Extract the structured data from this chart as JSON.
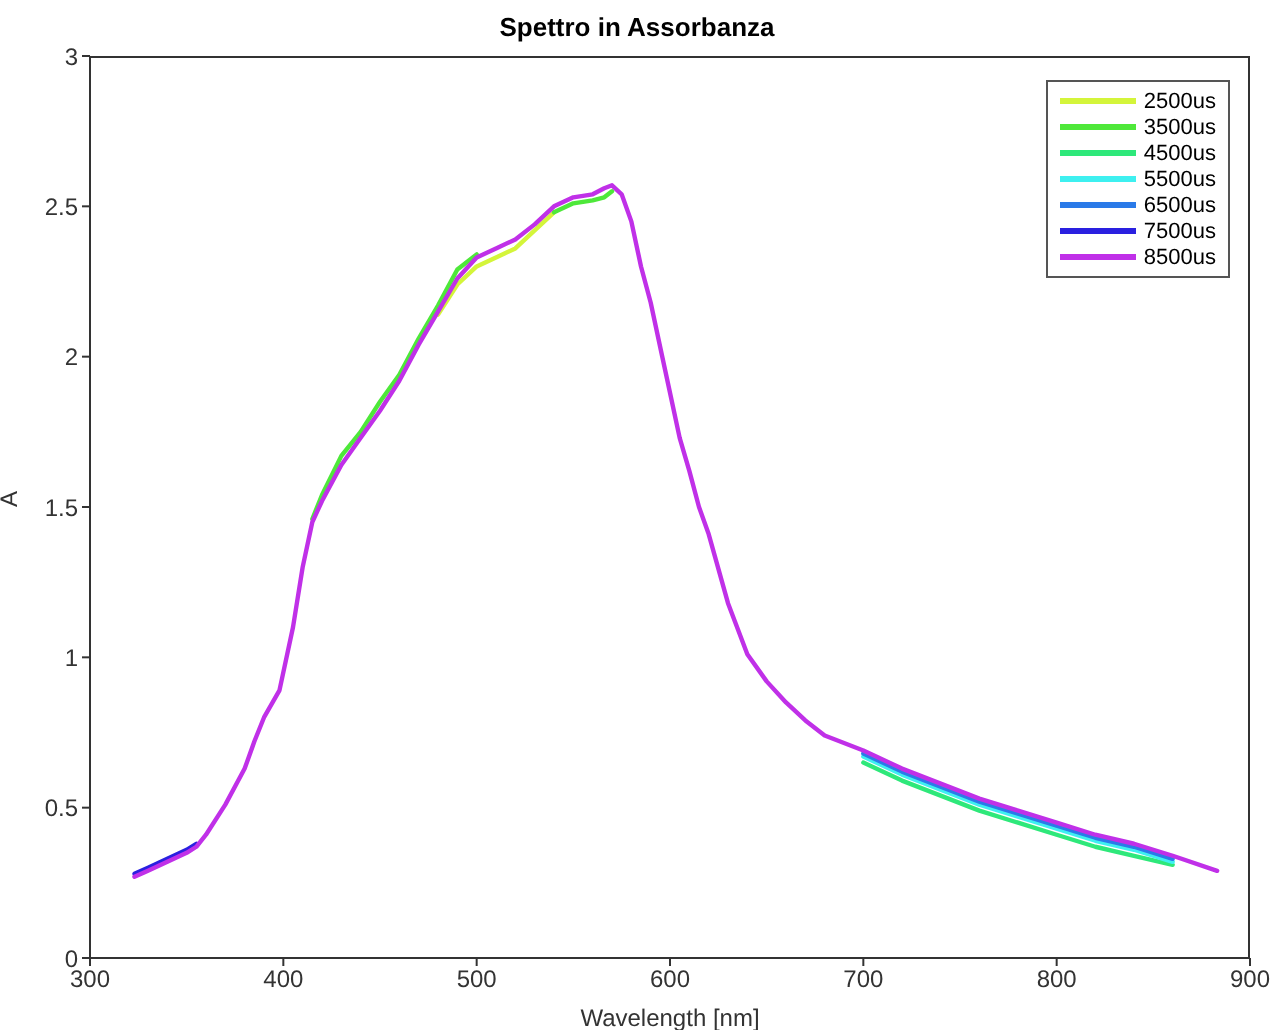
{
  "chart_data": {
    "type": "line",
    "title": "Spettro in Assorbanza",
    "xlabel": "Wavelength [nm]",
    "ylabel": "A",
    "x": [
      323,
      330,
      340,
      350,
      355,
      360,
      370,
      380,
      385,
      390,
      398,
      405,
      410,
      415,
      420,
      430,
      440,
      450,
      460,
      470,
      480,
      490,
      500,
      510,
      520,
      530,
      540,
      550,
      560,
      566,
      570,
      575,
      580,
      585,
      590,
      596,
      600,
      605,
      610,
      615,
      620,
      630,
      640,
      650,
      660,
      670,
      680,
      700,
      720,
      740,
      760,
      780,
      800,
      820,
      840,
      860,
      883
    ],
    "xlim": [
      300,
      900
    ],
    "xticks": [
      300,
      400,
      500,
      600,
      700,
      800,
      900
    ],
    "ylim": [
      0,
      3
    ],
    "yticks": [
      0,
      0.5,
      1,
      1.5,
      2,
      2.5,
      3
    ],
    "grid": false,
    "legend": "top right",
    "line_style": "solid",
    "marker": "none",
    "series": [
      {
        "name": "2500us",
        "color": "#d4f53a",
        "values": [
          null,
          null,
          null,
          null,
          null,
          null,
          null,
          null,
          null,
          null,
          null,
          null,
          null,
          null,
          null,
          null,
          null,
          null,
          null,
          null,
          2.14,
          2.24,
          2.3,
          2.33,
          2.36,
          2.42,
          2.48,
          null,
          null,
          null,
          null,
          null,
          null,
          null,
          null,
          null,
          null,
          null,
          null,
          null,
          null,
          null,
          null,
          null,
          null,
          null,
          null,
          null,
          null,
          null,
          null,
          null,
          null,
          null,
          null,
          null,
          null
        ]
      },
      {
        "name": "3500us",
        "color": "#4ee83a",
        "values": [
          null,
          null,
          null,
          null,
          null,
          null,
          null,
          null,
          null,
          null,
          null,
          null,
          null,
          1.46,
          1.54,
          1.67,
          1.75,
          1.85,
          1.94,
          2.06,
          2.17,
          2.29,
          2.34,
          null,
          null,
          null,
          2.48,
          2.51,
          2.52,
          2.53,
          2.55,
          null,
          null,
          null,
          null,
          null,
          null,
          null,
          null,
          null,
          null,
          null,
          null,
          null,
          null,
          null,
          null,
          null,
          null,
          null,
          null,
          null,
          null,
          null,
          null,
          null,
          null
        ]
      },
      {
        "name": "4500us",
        "color": "#2ee87a",
        "values": [
          null,
          null,
          null,
          null,
          null,
          null,
          null,
          null,
          null,
          null,
          null,
          null,
          null,
          null,
          null,
          null,
          null,
          null,
          null,
          null,
          null,
          null,
          null,
          null,
          null,
          null,
          null,
          null,
          null,
          null,
          null,
          null,
          null,
          null,
          null,
          null,
          null,
          null,
          null,
          null,
          null,
          null,
          null,
          null,
          null,
          null,
          null,
          0.65,
          0.59,
          0.54,
          0.49,
          0.45,
          0.41,
          0.37,
          0.34,
          0.31,
          null
        ]
      },
      {
        "name": "5500us",
        "color": "#3ef0f0",
        "values": [
          null,
          null,
          null,
          null,
          null,
          null,
          null,
          null,
          null,
          null,
          null,
          null,
          null,
          null,
          null,
          null,
          null,
          null,
          null,
          null,
          null,
          null,
          null,
          null,
          null,
          null,
          null,
          null,
          null,
          null,
          null,
          null,
          null,
          null,
          null,
          null,
          null,
          null,
          null,
          null,
          null,
          null,
          null,
          null,
          null,
          null,
          null,
          0.67,
          0.61,
          0.56,
          0.51,
          0.47,
          0.43,
          0.39,
          0.36,
          0.32,
          null
        ]
      },
      {
        "name": "6500us",
        "color": "#2a7ae8",
        "values": [
          null,
          null,
          null,
          null,
          null,
          null,
          null,
          null,
          null,
          null,
          null,
          null,
          null,
          null,
          null,
          null,
          null,
          null,
          null,
          null,
          null,
          null,
          null,
          null,
          null,
          null,
          null,
          null,
          null,
          null,
          null,
          null,
          null,
          null,
          null,
          null,
          null,
          null,
          null,
          null,
          null,
          null,
          null,
          null,
          null,
          null,
          null,
          0.68,
          0.62,
          0.57,
          0.52,
          0.48,
          0.44,
          0.4,
          0.37,
          0.33,
          null
        ]
      },
      {
        "name": "7500us",
        "color": "#2a20e0",
        "values": [
          0.28,
          0.3,
          0.33,
          0.36,
          0.38,
          null,
          null,
          null,
          null,
          null,
          null,
          null,
          null,
          null,
          null,
          null,
          null,
          null,
          null,
          null,
          null,
          null,
          null,
          null,
          null,
          null,
          null,
          null,
          null,
          null,
          null,
          null,
          null,
          null,
          null,
          null,
          null,
          null,
          null,
          null,
          null,
          null,
          null,
          null,
          null,
          null,
          null,
          null,
          null,
          null,
          null,
          null,
          null,
          null,
          null,
          null,
          null
        ]
      },
      {
        "name": "8500us",
        "color": "#c030e8",
        "values": [
          0.27,
          0.29,
          0.32,
          0.35,
          0.37,
          0.41,
          0.51,
          0.63,
          0.72,
          0.8,
          0.89,
          1.1,
          1.3,
          1.45,
          1.52,
          1.64,
          1.73,
          1.82,
          1.92,
          2.04,
          2.15,
          2.26,
          2.33,
          2.36,
          2.39,
          2.44,
          2.5,
          2.53,
          2.54,
          2.56,
          2.57,
          2.54,
          2.45,
          2.3,
          2.18,
          2.0,
          1.88,
          1.73,
          1.62,
          1.5,
          1.41,
          1.18,
          1.01,
          0.92,
          0.85,
          0.79,
          0.74,
          0.69,
          0.63,
          0.58,
          0.53,
          0.49,
          0.45,
          0.41,
          0.38,
          0.34,
          0.29
        ]
      }
    ]
  }
}
